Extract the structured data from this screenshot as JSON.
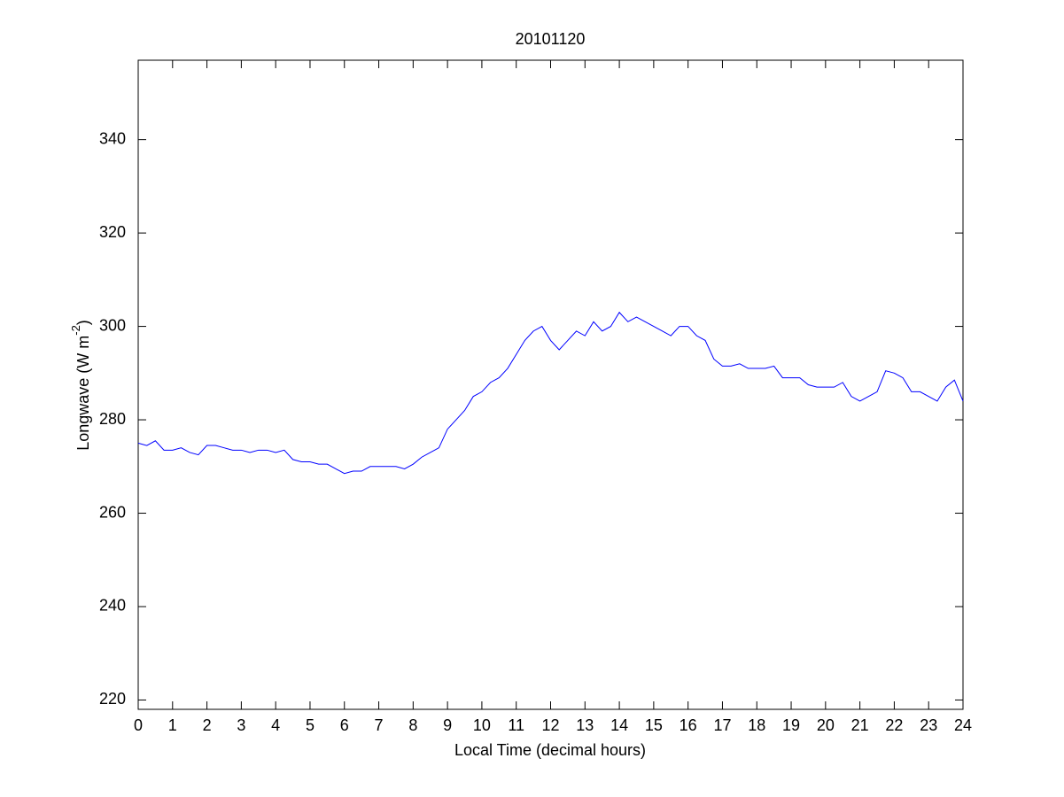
{
  "chart_data": {
    "type": "line",
    "title": "20101120",
    "xlabel": "Local Time (decimal hours)",
    "ylabel": {
      "text": "Longwave (W m",
      "sup": "-2",
      "end": ")"
    },
    "x": [
      0,
      0.25,
      0.5,
      0.75,
      1,
      1.25,
      1.5,
      1.75,
      2,
      2.25,
      2.5,
      2.75,
      3,
      3.25,
      3.5,
      3.75,
      4,
      4.25,
      4.5,
      4.75,
      5,
      5.25,
      5.5,
      5.75,
      6,
      6.25,
      6.5,
      6.75,
      7,
      7.25,
      7.5,
      7.75,
      8,
      8.25,
      8.5,
      8.75,
      9,
      9.25,
      9.5,
      9.75,
      10,
      10.25,
      10.5,
      10.75,
      11,
      11.25,
      11.5,
      11.75,
      12,
      12.25,
      12.5,
      12.75,
      13,
      13.25,
      13.5,
      13.75,
      14,
      14.25,
      14.5,
      14.75,
      15,
      15.25,
      15.5,
      15.75,
      16,
      16.25,
      16.5,
      16.75,
      17,
      17.25,
      17.5,
      17.75,
      18,
      18.25,
      18.5,
      18.75,
      19,
      19.25,
      19.5,
      19.75,
      20,
      20.25,
      20.5,
      20.75,
      21,
      21.25,
      21.5,
      21.75,
      22,
      22.25,
      22.5,
      22.75,
      23,
      23.25,
      23.5,
      23.75,
      24
    ],
    "series": [
      {
        "name": "Longwave",
        "color": "#0000ff",
        "values": [
          275,
          274.5,
          275.5,
          273.5,
          273.5,
          274,
          273,
          272.5,
          274.5,
          274.5,
          274,
          273.5,
          273.5,
          273,
          273.5,
          273.5,
          273,
          273.5,
          271.5,
          271,
          271,
          270.5,
          270.5,
          269.5,
          268.5,
          269,
          269,
          270,
          270,
          270,
          270,
          269.5,
          270.5,
          272,
          273,
          274,
          278,
          280,
          282,
          285,
          286,
          288,
          289,
          291,
          294,
          297,
          299,
          300,
          297,
          295,
          297,
          299,
          298,
          301,
          299,
          300,
          303,
          301,
          302,
          301,
          300,
          299,
          298,
          300,
          300,
          298,
          297,
          293,
          291.5,
          291.5,
          292,
          291,
          291,
          291,
          291.5,
          289,
          289,
          289,
          287.5,
          287,
          287,
          287,
          288,
          285,
          284,
          285,
          286,
          290.5,
          290,
          289,
          286,
          286,
          285,
          284,
          287,
          288.5,
          284
        ]
      }
    ],
    "xlim": [
      0,
      24
    ],
    "ylim": [
      218,
      357
    ],
    "xticks": [
      0,
      1,
      2,
      3,
      4,
      5,
      6,
      7,
      8,
      9,
      10,
      11,
      12,
      13,
      14,
      15,
      16,
      17,
      18,
      19,
      20,
      21,
      22,
      23,
      24
    ],
    "yticks": [
      220,
      240,
      260,
      280,
      300,
      320,
      340
    ]
  }
}
